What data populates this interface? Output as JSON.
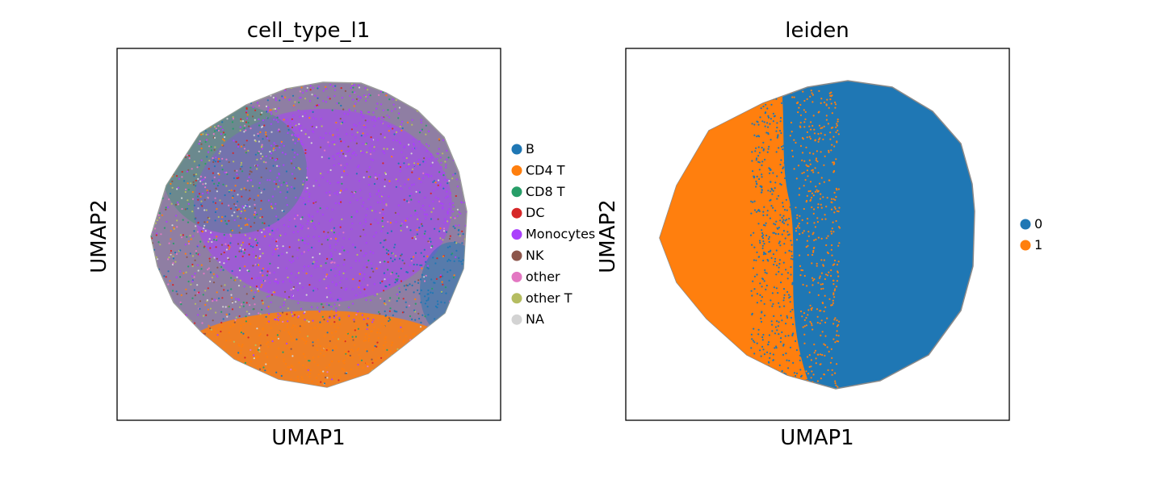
{
  "chart_data": [
    {
      "type": "scatter",
      "title": "cell_type_l1",
      "xlabel": "UMAP1",
      "ylabel": "UMAP2",
      "grid": false,
      "legend_position": "right",
      "legend": [
        {
          "label": "B",
          "color": "#1f77b4"
        },
        {
          "label": "CD4 T",
          "color": "#ff7f0e"
        },
        {
          "label": "CD8 T",
          "color": "#279e68"
        },
        {
          "label": "DC",
          "color": "#d62728"
        },
        {
          "label": "Monocytes",
          "color": "#aa40fc"
        },
        {
          "label": "NK",
          "color": "#8c564b"
        },
        {
          "label": "other",
          "color": "#e377c2"
        },
        {
          "label": "other T",
          "color": "#b5bd61"
        },
        {
          "label": "NA",
          "color": "#d3d3d3"
        }
      ]
    },
    {
      "type": "scatter",
      "title": "leiden",
      "xlabel": "UMAP1",
      "ylabel": "UMAP2",
      "grid": false,
      "legend_position": "right",
      "legend": [
        {
          "label": "0",
          "color": "#1f77b4"
        },
        {
          "label": "1",
          "color": "#ff7f0e"
        }
      ]
    }
  ]
}
